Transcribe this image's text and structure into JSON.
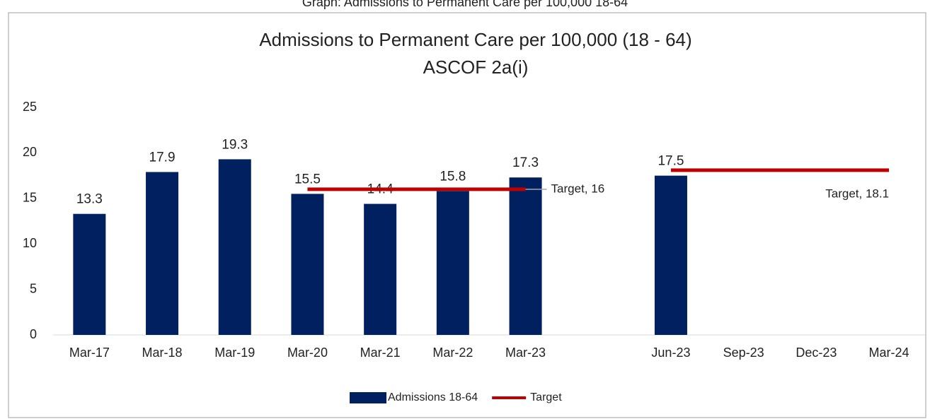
{
  "chart_data": {
    "type": "bar",
    "caption": "Graph: Admissions to Permanent Care per 100,000 18-64",
    "title": "Admissions to Permanent Care per 100,000  (18 - 64)",
    "subtitle": "ASCOF 2a(i)",
    "categories": [
      "Mar-17",
      "Mar-18",
      "Mar-19",
      "Mar-20",
      "Mar-21",
      "Mar-22",
      "Mar-23",
      null,
      "Jun-23",
      "Sep-23",
      "Dec-23",
      "Mar-24"
    ],
    "series": [
      {
        "name": "Admissions 18-64",
        "color": "#002060",
        "type": "bar",
        "values": [
          13.3,
          17.9,
          19.3,
          15.5,
          14.4,
          15.8,
          17.3,
          null,
          17.5,
          null,
          null,
          null
        ]
      },
      {
        "name": "Target",
        "color": "#c00000",
        "type": "line",
        "values": [
          null,
          null,
          null,
          16,
          16,
          16,
          16,
          null,
          18.1,
          18.1,
          18.1,
          18.1
        ],
        "value_labels": [
          null,
          null,
          null,
          null,
          null,
          null,
          "Target, 16",
          null,
          null,
          null,
          null,
          "Target, 18.1"
        ]
      }
    ],
    "ylim": [
      0,
      25
    ],
    "yticks": [
      0,
      5,
      10,
      15,
      20,
      25
    ],
    "grid": false,
    "legend": "bottom"
  }
}
